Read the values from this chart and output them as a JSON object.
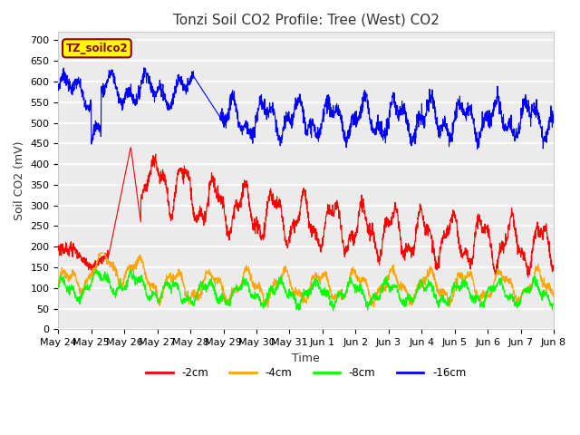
{
  "title": "Tonzi Soil CO2 Profile: Tree (West) CO2",
  "ylabel": "Soil CO2 (mV)",
  "xlabel": "Time",
  "legend_label": "TZ_soilco2",
  "series_labels": [
    "-2cm",
    "-4cm",
    "-8cm",
    "-16cm"
  ],
  "series_colors": [
    "red",
    "orange",
    "green",
    "blue"
  ],
  "ylim": [
    0,
    720
  ],
  "yticks": [
    0,
    50,
    100,
    150,
    200,
    250,
    300,
    350,
    400,
    450,
    500,
    550,
    600,
    650,
    700
  ],
  "xtick_labels": [
    "May 24",
    "May 25",
    "May 26",
    "May 27",
    "May 28",
    "May 29",
    "May 30",
    "May 31",
    "Jun 1",
    "Jun 2",
    "Jun 3",
    "Jun 4",
    "Jun 5",
    "Jun 6",
    "Jun 7",
    "Jun 8"
  ],
  "background_color": "#ebebeb",
  "grid_color": "white",
  "title_fontsize": 11,
  "axis_fontsize": 9,
  "tick_fontsize": 8
}
